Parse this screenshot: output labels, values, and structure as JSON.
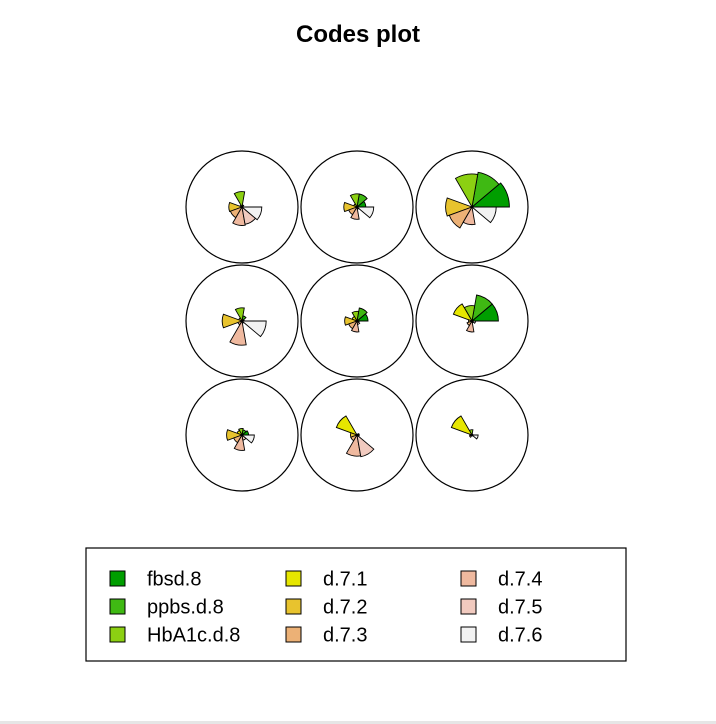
{
  "chart_data": {
    "type": "som-codes-segments",
    "title": "Codes plot",
    "variables": [
      {
        "name": "fbsd.8",
        "color": "#009E00"
      },
      {
        "name": "ppbs.d.8",
        "color": "#3FB913"
      },
      {
        "name": "HbA1c.d.8",
        "color": "#8CD012"
      },
      {
        "name": "d.7.1",
        "color": "#E6E600"
      },
      {
        "name": "d.7.2",
        "color": "#E8C32E"
      },
      {
        "name": "d.7.3",
        "color": "#ECB176"
      },
      {
        "name": "d.7.4",
        "color": "#EFB99F"
      },
      {
        "name": "d.7.5",
        "color": "#F1CABF"
      },
      {
        "name": "d.7.6",
        "color": "#F2F2F2"
      }
    ],
    "grid": {
      "rows": 3,
      "cols": 3
    },
    "units": [
      {
        "row": 1,
        "col": 1,
        "values": [
          0.02,
          0.05,
          0.35,
          0.05,
          0.3,
          0.28,
          0.42,
          0.4,
          0.45
        ]
      },
      {
        "row": 1,
        "col": 2,
        "values": [
          0.2,
          0.3,
          0.3,
          0.08,
          0.3,
          0.2,
          0.28,
          0.05,
          0.38
        ]
      },
      {
        "row": 1,
        "col": 3,
        "values": [
          0.85,
          0.8,
          0.75,
          0.02,
          0.6,
          0.55,
          0.4,
          0.02,
          0.55
        ]
      },
      {
        "row": 2,
        "col": 1,
        "values": [
          0.05,
          0.12,
          0.3,
          0.08,
          0.45,
          0.1,
          0.55,
          0.05,
          0.55
        ]
      },
      {
        "row": 2,
        "col": 2,
        "values": [
          0.25,
          0.3,
          0.22,
          0.12,
          0.28,
          0.2,
          0.25,
          0.08,
          0.05
        ]
      },
      {
        "row": 2,
        "col": 3,
        "values": [
          0.6,
          0.6,
          0.35,
          0.45,
          0.08,
          0.12,
          0.25,
          0.04,
          0.08
        ]
      },
      {
        "row": 3,
        "col": 1,
        "values": [
          0.15,
          0.12,
          0.15,
          0.12,
          0.35,
          0.2,
          0.35,
          0.12,
          0.28
        ]
      },
      {
        "row": 3,
        "col": 2,
        "values": [
          0.05,
          0.02,
          0.02,
          0.5,
          0.15,
          0.15,
          0.48,
          0.5,
          0.05
        ]
      },
      {
        "row": 3,
        "col": 3,
        "values": [
          0.02,
          0.02,
          0.12,
          0.5,
          0.05,
          0.06,
          0.02,
          0.02,
          0.14
        ]
      }
    ],
    "legend": {
      "position": "bottom",
      "columns": 3
    }
  }
}
